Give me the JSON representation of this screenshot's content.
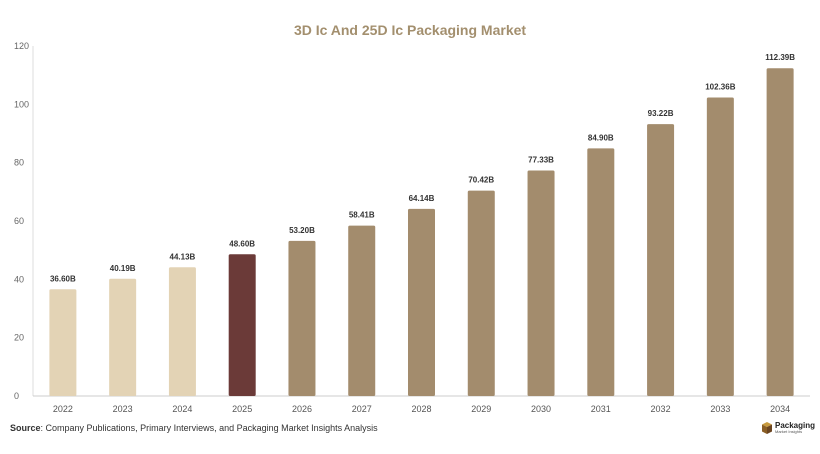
{
  "chart_data": {
    "type": "bar",
    "title": "3D Ic And 25D Ic Packaging Market",
    "categories": [
      "2022",
      "2023",
      "2024",
      "2025",
      "2026",
      "2027",
      "2028",
      "2029",
      "2030",
      "2031",
      "2032",
      "2033",
      "2034"
    ],
    "values": [
      36.6,
      40.19,
      44.13,
      48.6,
      53.2,
      58.41,
      64.14,
      70.42,
      77.33,
      84.9,
      93.22,
      102.36,
      112.39
    ],
    "data_labels": [
      "36.60B",
      "40.19B",
      "44.13B",
      "48.60B",
      "53.20B",
      "58.41B",
      "64.14B",
      "70.42B",
      "77.33B",
      "84.90B",
      "93.22B",
      "102.36B",
      "112.39B"
    ],
    "xlabel": "",
    "ylabel": "",
    "ylim": [
      0,
      120
    ],
    "yticks": [
      "0",
      "20",
      "40",
      "60",
      "80",
      "100",
      "120"
    ],
    "grid": false,
    "colors": {
      "historical": "#e3d3b5",
      "current": "#6b3a38",
      "forecast": "#a38c6d",
      "title": "#a38f6e"
    },
    "bar_color_groups": [
      "historical",
      "historical",
      "historical",
      "current",
      "forecast",
      "forecast",
      "forecast",
      "forecast",
      "forecast",
      "forecast",
      "forecast",
      "forecast",
      "forecast"
    ]
  },
  "footer": {
    "source_label": "Source",
    "source_text": ": Company Publications, Primary Interviews, and Packaging Market Insights Analysis"
  },
  "logo": {
    "name": "Packaging",
    "tagline": "Market Insights",
    "icon": "box-icon"
  }
}
